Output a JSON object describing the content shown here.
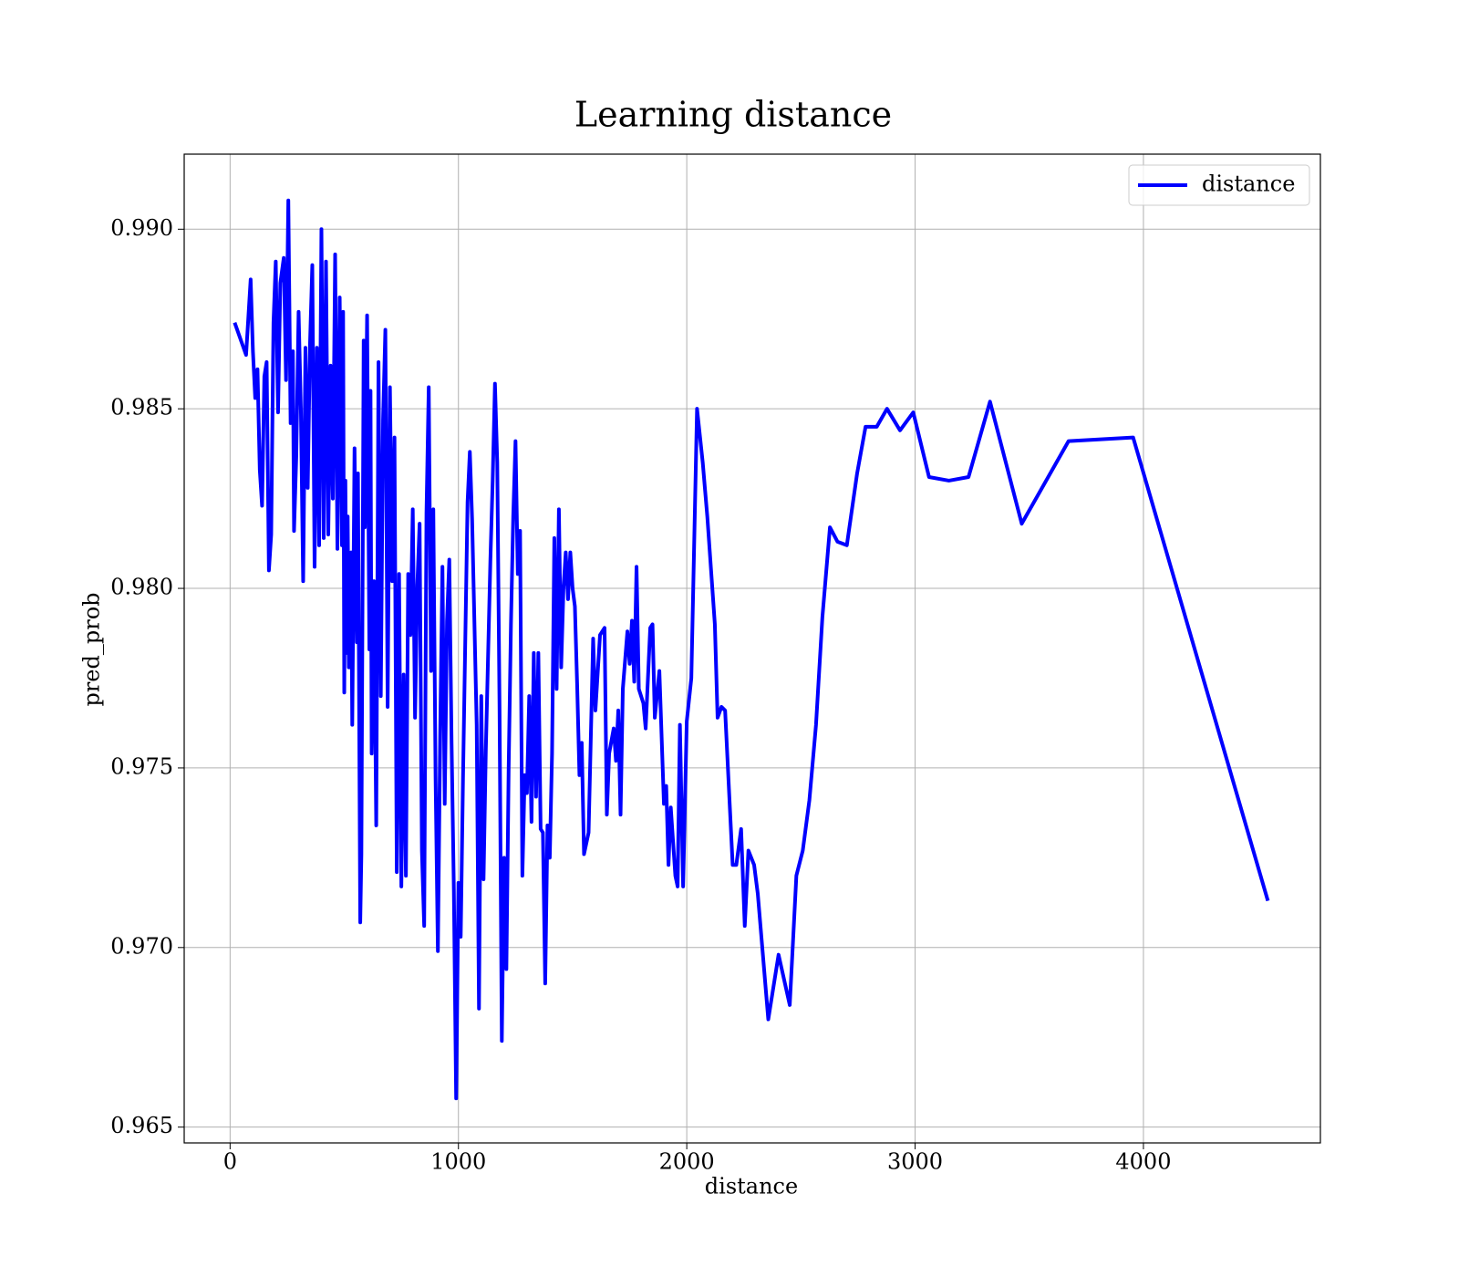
{
  "chart_data": {
    "type": "line",
    "title": "Learning distance",
    "xlabel": "distance",
    "ylabel": "pred_prob",
    "x": [
      20,
      70,
      90,
      100,
      110,
      120,
      130,
      140,
      150,
      160,
      170,
      180,
      190,
      200,
      210,
      220,
      235,
      245,
      255,
      265,
      275,
      280,
      290,
      300,
      310,
      320,
      330,
      340,
      350,
      360,
      370,
      380,
      390,
      400,
      410,
      420,
      430,
      440,
      450,
      460,
      470,
      480,
      490,
      495,
      500,
      505,
      510,
      515,
      520,
      530,
      535,
      545,
      555,
      560,
      570,
      575,
      585,
      590,
      600,
      610,
      615,
      620,
      630,
      640,
      650,
      660,
      670,
      680,
      690,
      700,
      710,
      720,
      730,
      740,
      750,
      760,
      770,
      780,
      790,
      800,
      810,
      820,
      830,
      840,
      850,
      860,
      870,
      880,
      890,
      900,
      910,
      920,
      930,
      940,
      950,
      960,
      970,
      980,
      990,
      1000,
      1010,
      1020,
      1040,
      1050,
      1060,
      1080,
      1090,
      1100,
      1110,
      1120,
      1140,
      1150,
      1160,
      1170,
      1180,
      1190,
      1200,
      1210,
      1220,
      1230,
      1240,
      1250,
      1260,
      1270,
      1280,
      1290,
      1300,
      1310,
      1320,
      1330,
      1340,
      1350,
      1360,
      1370,
      1380,
      1390,
      1400,
      1410,
      1420,
      1430,
      1440,
      1450,
      1460,
      1470,
      1480,
      1490,
      1500,
      1510,
      1520,
      1530,
      1540,
      1550,
      1570,
      1590,
      1600,
      1620,
      1640,
      1650,
      1660,
      1680,
      1690,
      1700,
      1710,
      1720,
      1740,
      1750,
      1760,
      1770,
      1780,
      1790,
      1810,
      1820,
      1840,
      1850,
      1860,
      1880,
      1900,
      1910,
      1920,
      1930,
      1950,
      1960,
      1970,
      1984,
      2000,
      2020,
      2045,
      2070,
      2090,
      2123,
      2135,
      2152,
      2168,
      2201,
      2217,
      2238,
      2254,
      2270,
      2295,
      2311,
      2357,
      2402,
      2451,
      2480,
      2508,
      2537,
      2566,
      2594,
      2627,
      2660,
      2701,
      2746,
      2783,
      2832,
      2877,
      2934,
      2992,
      3061,
      3148,
      3234,
      3328,
      3467,
      3672,
      3955,
      4545
    ],
    "series": [
      {
        "name": "distance",
        "color": "#0000ff",
        "values": [
          0.9874,
          0.9865,
          0.9886,
          0.9866,
          0.9853,
          0.9861,
          0.9833,
          0.9823,
          0.9859,
          0.9863,
          0.9805,
          0.9815,
          0.9874,
          0.9891,
          0.9849,
          0.9885,
          0.9892,
          0.9858,
          0.9908,
          0.9846,
          0.9866,
          0.9816,
          0.9837,
          0.9877,
          0.985,
          0.9802,
          0.9867,
          0.9828,
          0.9868,
          0.989,
          0.9806,
          0.9867,
          0.9812,
          0.99,
          0.9814,
          0.9891,
          0.9815,
          0.9862,
          0.9825,
          0.9893,
          0.9811,
          0.9881,
          0.9812,
          0.9877,
          0.9771,
          0.983,
          0.9782,
          0.982,
          0.9778,
          0.981,
          0.9762,
          0.9839,
          0.9785,
          0.9832,
          0.9707,
          0.9726,
          0.9869,
          0.9817,
          0.9876,
          0.9783,
          0.9855,
          0.9754,
          0.9802,
          0.9734,
          0.9863,
          0.977,
          0.9847,
          0.9872,
          0.9767,
          0.9856,
          0.9802,
          0.9842,
          0.9721,
          0.9804,
          0.9717,
          0.9776,
          0.972,
          0.9804,
          0.9787,
          0.9822,
          0.9764,
          0.9801,
          0.9818,
          0.9727,
          0.9706,
          0.9821,
          0.9856,
          0.9777,
          0.9822,
          0.9747,
          0.9699,
          0.9759,
          0.9806,
          0.974,
          0.9791,
          0.9808,
          0.9757,
          0.9716,
          0.9658,
          0.9718,
          0.9703,
          0.9747,
          0.9824,
          0.9838,
          0.9819,
          0.9762,
          0.9683,
          0.977,
          0.9719,
          0.9755,
          0.9808,
          0.983,
          0.9857,
          0.9835,
          0.9767,
          0.9674,
          0.9725,
          0.9694,
          0.975,
          0.979,
          0.982,
          0.9841,
          0.9804,
          0.9816,
          0.972,
          0.9748,
          0.9743,
          0.977,
          0.9735,
          0.9782,
          0.9742,
          0.9782,
          0.9733,
          0.9732,
          0.969,
          0.9734,
          0.9725,
          0.9754,
          0.9814,
          0.9772,
          0.9822,
          0.9778,
          0.98,
          0.981,
          0.9797,
          0.981,
          0.98,
          0.9795,
          0.9773,
          0.9748,
          0.9757,
          0.9726,
          0.9732,
          0.9786,
          0.9766,
          0.9787,
          0.9789,
          0.9737,
          0.9754,
          0.9761,
          0.9752,
          0.9766,
          0.9737,
          0.9772,
          0.9788,
          0.9779,
          0.9791,
          0.9774,
          0.9806,
          0.9772,
          0.9768,
          0.9761,
          0.9789,
          0.979,
          0.9764,
          0.9777,
          0.974,
          0.9745,
          0.9723,
          0.9739,
          0.972,
          0.9717,
          0.9762,
          0.9717,
          0.9763,
          0.9775,
          0.985,
          0.9835,
          0.982,
          0.979,
          0.9764,
          0.9767,
          0.9766,
          0.9723,
          0.9723,
          0.9733,
          0.9706,
          0.9727,
          0.9723,
          0.9715,
          0.968,
          0.9698,
          0.9684,
          0.972,
          0.9727,
          0.9741,
          0.9762,
          0.9792,
          0.9817,
          0.9813,
          0.9812,
          0.9832,
          0.9845,
          0.9845,
          0.985,
          0.9844,
          0.9849,
          0.9831,
          0.983,
          0.9831,
          0.9852,
          0.9818,
          0.9841,
          0.9842,
          0.9713
        ]
      }
    ],
    "xlim": [
      -201,
      4775
    ],
    "xticks": [
      0,
      1000,
      2000,
      3000,
      4000
    ],
    "ylim": [
      0.96456,
      0.99209
    ],
    "yticks": [
      0.965,
      {
        "value": 0.97,
        "label": "0.970"
      },
      0.975,
      {
        "value": 0.98,
        "label": "0.980"
      },
      0.985,
      {
        "value": 0.99,
        "label": "0.990"
      }
    ],
    "grid": true,
    "legend": "upper right"
  }
}
